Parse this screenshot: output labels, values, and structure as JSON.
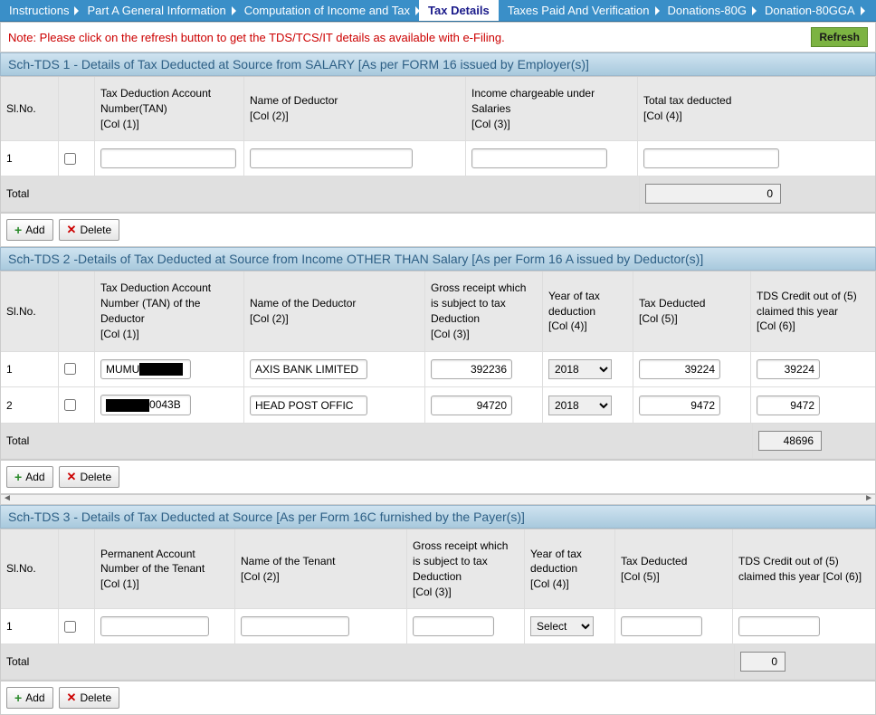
{
  "tabs": [
    {
      "label": "Instructions",
      "active": false
    },
    {
      "label": "Part A General Information",
      "active": false
    },
    {
      "label": "Computation of Income and Tax",
      "active": false
    },
    {
      "label": "Tax Details",
      "active": true
    },
    {
      "label": "Taxes Paid And Verification",
      "active": false
    },
    {
      "label": "Donations-80G",
      "active": false
    },
    {
      "label": "Donation-80GGA",
      "active": false
    }
  ],
  "note": "Note: Please click on the refresh button to get the TDS/TCS/IT details as available with e-Filing.",
  "refresh_label": "Refresh",
  "add_label": "Add",
  "delete_label": "Delete",
  "total_label": "Total",
  "tds1": {
    "header": "Sch-TDS 1 - Details of Tax Deducted at Source from SALARY [As per FORM 16 issued by Employer(s)]",
    "cols": {
      "sl": "Sl.No.",
      "tan": "Tax Deduction Account Number(TAN)\n[Col (1)]",
      "name": "Name of Deductor\n[Col (2)]",
      "income": "Income chargeable under Salaries\n[Col (3)]",
      "tax": "Total tax deducted\n[Col (4)]"
    },
    "rows": [
      {
        "sl": "1",
        "tan": "",
        "name": "",
        "income": "",
        "tax": ""
      }
    ],
    "total": "0"
  },
  "tds2": {
    "header": "Sch-TDS 2 -Details of Tax Deducted at Source from Income OTHER THAN Salary [As per Form 16 A issued by Deductor(s)]",
    "cols": {
      "sl": "Sl.No.",
      "tan": "Tax Deduction Account Number (TAN) of the Deductor\n[Col (1)]",
      "name": "Name of the Deductor\n[Col (2)]",
      "gross": "Gross receipt which is subject to tax Deduction\n[Col (3)]",
      "year": "Year of tax deduction\n[Col (4)]",
      "ded": "Tax Deducted\n[Col (5)]",
      "credit": "TDS Credit out of (5) claimed this year\n[Col (6)]"
    },
    "rows": [
      {
        "sl": "1",
        "tan_prefix": "MUMU",
        "tan_redact": true,
        "name": "AXIS BANK LIMITED",
        "gross": "392236",
        "year": "2018",
        "ded": "39224",
        "credit": "39224"
      },
      {
        "sl": "2",
        "tan_prefix": "",
        "tan_redact": true,
        "tan_suffix": "0043B",
        "name": "HEAD POST OFFIC",
        "gross": "94720",
        "year": "2018",
        "ded": "9472",
        "credit": "9472"
      }
    ],
    "total": "48696"
  },
  "tds3": {
    "header": "Sch-TDS 3 - Details of Tax Deducted at Source [As per Form 16C furnished by the Payer(s)]",
    "cols": {
      "sl": "Sl.No.",
      "pan": "Permanent Account Number of the Tenant\n[Col (1)]",
      "name": "Name of the Tenant\n[Col (2)]",
      "gross": "Gross receipt which is subject to tax Deduction\n[Col (3)]",
      "year": "Year of tax deduction\n[Col (4)]",
      "ded": "Tax Deducted\n[Col (5)]",
      "credit": "TDS Credit out of (5) claimed this year [Col (6)]"
    },
    "rows": [
      {
        "sl": "1",
        "pan": "",
        "name": "",
        "gross": "",
        "year": "Select",
        "ded": "",
        "credit": ""
      }
    ],
    "total": "0"
  }
}
